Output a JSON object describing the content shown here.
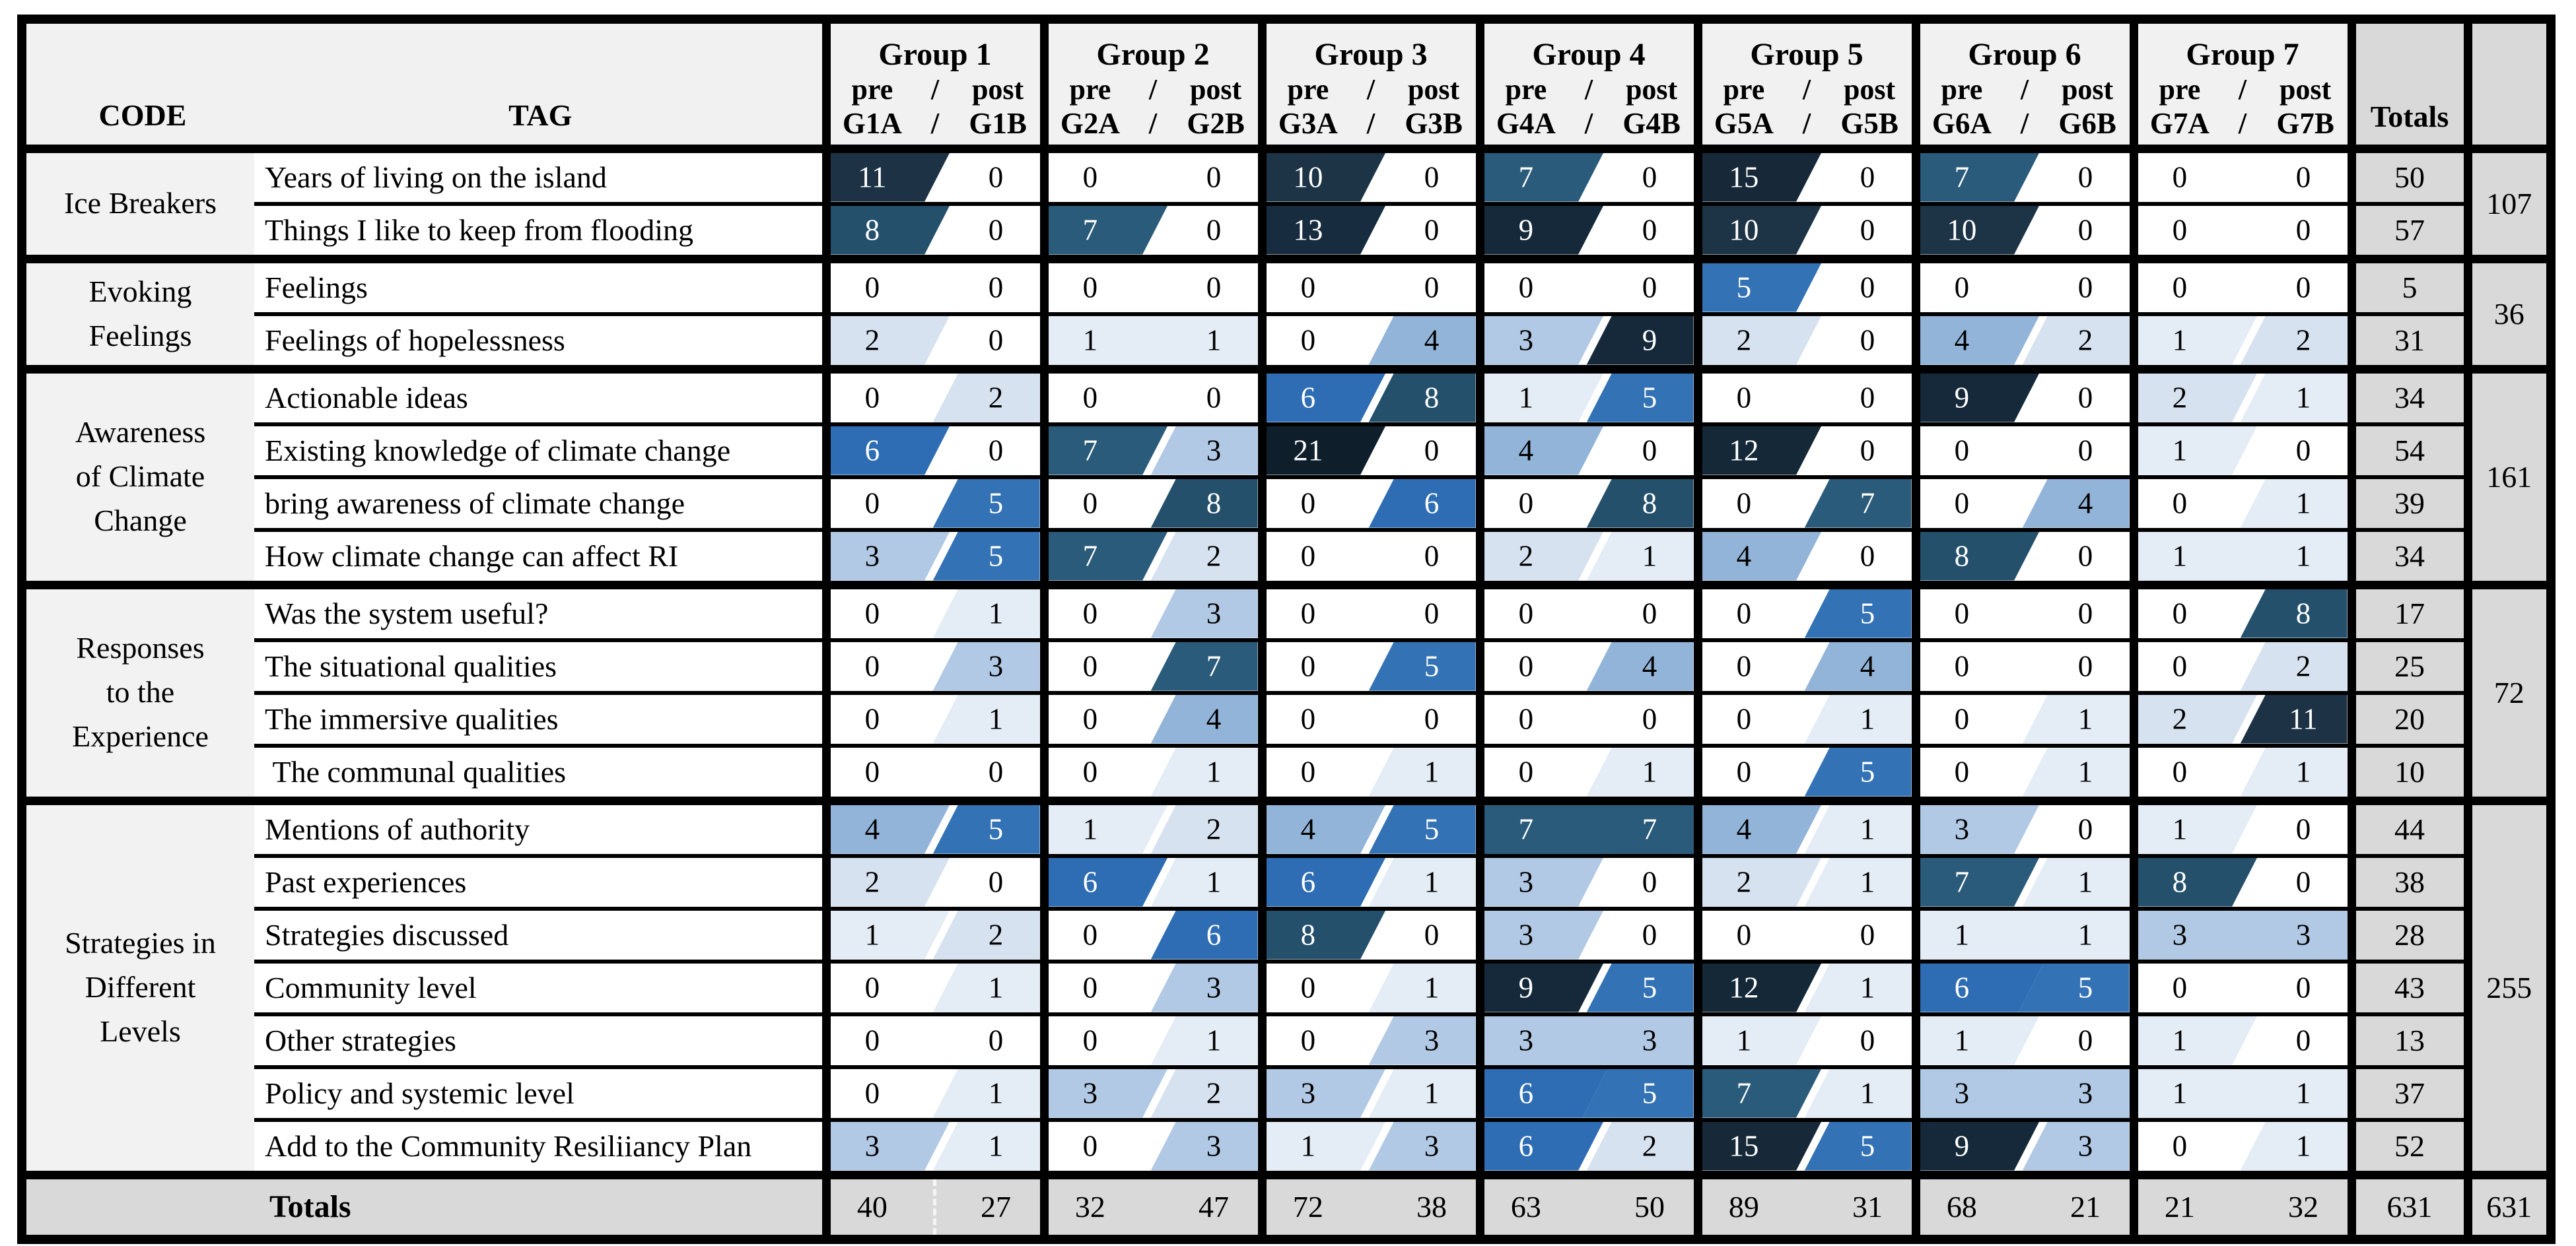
{
  "header": {
    "code_label": "CODE",
    "tag_label": "TAG",
    "pre_label": "pre",
    "post_label": "post",
    "slash": "/",
    "totals_label": "Totals",
    "groups": [
      {
        "name": "Group 1",
        "pre_id": "G1A",
        "post_id": "G1B"
      },
      {
        "name": "Group 2",
        "pre_id": "G2A",
        "post_id": "G2B"
      },
      {
        "name": "Group 3",
        "pre_id": "G3A",
        "post_id": "G3B"
      },
      {
        "name": "Group 4",
        "pre_id": "G4A",
        "post_id": "G4B"
      },
      {
        "name": "Group 5",
        "pre_id": "G5A",
        "post_id": "G5B"
      },
      {
        "name": "Group 6",
        "pre_id": "G6A",
        "post_id": "G6B"
      },
      {
        "name": "Group 7",
        "pre_id": "G7A",
        "post_id": "G7B"
      }
    ]
  },
  "categories": [
    {
      "code": "Ice Breakers",
      "category_total": 107,
      "rows": [
        {
          "tag": "Years of living on the island",
          "cells": [
            [
              11,
              0
            ],
            [
              0,
              0
            ],
            [
              10,
              0
            ],
            [
              7,
              0
            ],
            [
              15,
              0
            ],
            [
              7,
              0
            ],
            [
              0,
              0
            ]
          ],
          "row_total": 50
        },
        {
          "tag": "Things I like to keep from flooding",
          "cells": [
            [
              8,
              0
            ],
            [
              7,
              0
            ],
            [
              13,
              0
            ],
            [
              9,
              0
            ],
            [
              10,
              0
            ],
            [
              10,
              0
            ],
            [
              0,
              0
            ]
          ],
          "row_total": 57
        }
      ]
    },
    {
      "code": "Evoking\nFeelings",
      "category_total": 36,
      "rows": [
        {
          "tag": "Feelings",
          "cells": [
            [
              0,
              0
            ],
            [
              0,
              0
            ],
            [
              0,
              0
            ],
            [
              0,
              0
            ],
            [
              5,
              0
            ],
            [
              0,
              0
            ],
            [
              0,
              0
            ]
          ],
          "row_total": 5
        },
        {
          "tag": "Feelings of hopelessness",
          "cells": [
            [
              2,
              0
            ],
            [
              1,
              1
            ],
            [
              0,
              4
            ],
            [
              3,
              9
            ],
            [
              2,
              0
            ],
            [
              4,
              2
            ],
            [
              1,
              2
            ]
          ],
          "row_total": 31
        }
      ]
    },
    {
      "code": "Awareness\nof Climate\nChange",
      "category_total": 161,
      "rows": [
        {
          "tag": "Actionable ideas",
          "cells": [
            [
              0,
              2
            ],
            [
              0,
              0
            ],
            [
              6,
              8
            ],
            [
              1,
              5
            ],
            [
              0,
              0
            ],
            [
              9,
              0
            ],
            [
              2,
              1
            ]
          ],
          "row_total": 34
        },
        {
          "tag": "Existing knowledge of climate change",
          "cells": [
            [
              6,
              0
            ],
            [
              7,
              3
            ],
            [
              21,
              0
            ],
            [
              4,
              0
            ],
            [
              12,
              0
            ],
            [
              0,
              0
            ],
            [
              1,
              0
            ]
          ],
          "row_total": 54
        },
        {
          "tag": "bring awareness of climate change",
          "cells": [
            [
              0,
              5
            ],
            [
              0,
              8
            ],
            [
              0,
              6
            ],
            [
              0,
              8
            ],
            [
              0,
              7
            ],
            [
              0,
              4
            ],
            [
              0,
              1
            ]
          ],
          "row_total": 39
        },
        {
          "tag": "How climate change can affect RI",
          "cells": [
            [
              3,
              5
            ],
            [
              7,
              2
            ],
            [
              0,
              0
            ],
            [
              2,
              1
            ],
            [
              4,
              0
            ],
            [
              8,
              0
            ],
            [
              1,
              1
            ]
          ],
          "row_total": 34
        }
      ]
    },
    {
      "code": "Responses\nto the\nExperience",
      "category_total": 72,
      "rows": [
        {
          "tag": "Was the system useful?",
          "cells": [
            [
              0,
              1
            ],
            [
              0,
              3
            ],
            [
              0,
              0
            ],
            [
              0,
              0
            ],
            [
              0,
              5
            ],
            [
              0,
              0
            ],
            [
              0,
              8
            ]
          ],
          "row_total": 17
        },
        {
          "tag": "The situational qualities",
          "cells": [
            [
              0,
              3
            ],
            [
              0,
              7
            ],
            [
              0,
              5
            ],
            [
              0,
              4
            ],
            [
              0,
              4
            ],
            [
              0,
              0
            ],
            [
              0,
              2
            ]
          ],
          "row_total": 25
        },
        {
          "tag": "The immersive qualities",
          "cells": [
            [
              0,
              1
            ],
            [
              0,
              4
            ],
            [
              0,
              0
            ],
            [
              0,
              0
            ],
            [
              0,
              1
            ],
            [
              0,
              1
            ],
            [
              2,
              11
            ]
          ],
          "row_total": 20
        },
        {
          "tag": " The communal qualities",
          "cells": [
            [
              0,
              0
            ],
            [
              0,
              1
            ],
            [
              0,
              1
            ],
            [
              0,
              1
            ],
            [
              0,
              5
            ],
            [
              0,
              1
            ],
            [
              0,
              1
            ]
          ],
          "row_total": 10
        }
      ]
    },
    {
      "code": "Strategies in\nDifferent\nLevels",
      "category_total": 255,
      "rows": [
        {
          "tag": "Mentions of authority",
          "cells": [
            [
              4,
              5
            ],
            [
              1,
              2
            ],
            [
              4,
              5
            ],
            [
              7,
              7
            ],
            [
              4,
              1
            ],
            [
              3,
              0
            ],
            [
              1,
              0
            ]
          ],
          "row_total": 44
        },
        {
          "tag": "Past experiences",
          "cells": [
            [
              2,
              0
            ],
            [
              6,
              1
            ],
            [
              6,
              1
            ],
            [
              3,
              0
            ],
            [
              2,
              1
            ],
            [
              7,
              1
            ],
            [
              8,
              0
            ]
          ],
          "row_total": 38
        },
        {
          "tag": "Strategies discussed",
          "cells": [
            [
              1,
              2
            ],
            [
              0,
              6
            ],
            [
              8,
              0
            ],
            [
              3,
              0
            ],
            [
              0,
              0
            ],
            [
              1,
              1
            ],
            [
              3,
              3
            ]
          ],
          "row_total": 28
        },
        {
          "tag": "Community level",
          "cells": [
            [
              0,
              1
            ],
            [
              0,
              3
            ],
            [
              0,
              1
            ],
            [
              9,
              5
            ],
            [
              12,
              1
            ],
            [
              6,
              5
            ],
            [
              0,
              0
            ]
          ],
          "row_total": 43
        },
        {
          "tag": "Other strategies",
          "cells": [
            [
              0,
              0
            ],
            [
              0,
              1
            ],
            [
              0,
              3
            ],
            [
              3,
              3
            ],
            [
              1,
              0
            ],
            [
              1,
              0
            ],
            [
              1,
              0
            ]
          ],
          "row_total": 13
        },
        {
          "tag": "Policy and systemic level",
          "cells": [
            [
              0,
              1
            ],
            [
              3,
              2
            ],
            [
              3,
              1
            ],
            [
              6,
              5
            ],
            [
              7,
              1
            ],
            [
              3,
              3
            ],
            [
              1,
              1
            ]
          ],
          "row_total": 37
        },
        {
          "tag": "Add to the Community Resiliiancy Plan",
          "cells": [
            [
              3,
              1
            ],
            [
              0,
              3
            ],
            [
              1,
              3
            ],
            [
              6,
              2
            ],
            [
              15,
              5
            ],
            [
              9,
              3
            ],
            [
              0,
              1
            ]
          ],
          "row_total": 52
        }
      ]
    }
  ],
  "totals_row": {
    "label": "Totals",
    "cells": [
      [
        40,
        27
      ],
      [
        32,
        47
      ],
      [
        72,
        38
      ],
      [
        63,
        50
      ],
      [
        89,
        31
      ],
      [
        68,
        21
      ],
      [
        21,
        32
      ]
    ],
    "row_total": 631,
    "grand_total": 631
  },
  "heatmap": {
    "anchors": [
      [
        0,
        "#ffffff"
      ],
      [
        1,
        "#e4ecf6"
      ],
      [
        2,
        "#d6e2f0"
      ],
      [
        3,
        "#b1c9e4"
      ],
      [
        4,
        "#92b4d8"
      ],
      [
        5,
        "#3372b5"
      ],
      [
        6,
        "#2e6db4"
      ],
      [
        7,
        "#2b5b7a"
      ],
      [
        8,
        "#24506c"
      ],
      [
        9,
        "#15293a"
      ],
      [
        10,
        "#1d3447"
      ],
      [
        11,
        "#1d3345"
      ],
      [
        12,
        "#142838"
      ],
      [
        13,
        "#172c3e"
      ],
      [
        15,
        "#172939"
      ],
      [
        21,
        "#0e1e2b"
      ]
    ],
    "light_text_min": 5,
    "light_text": "#ffffff",
    "dark_text": "#000000"
  },
  "colors": {
    "header_bg": "#f1f1f1",
    "code_col_bg": "#f2f2f2",
    "totals_bg": "#d9d9d9",
    "border": "#000000"
  }
}
